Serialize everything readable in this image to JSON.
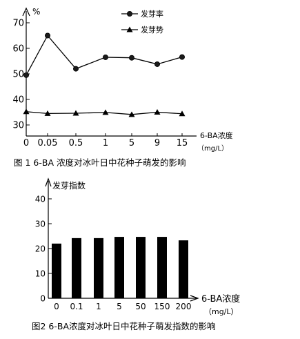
{
  "chart_data": [
    {
      "type": "line",
      "title": "图 1 6-BA 浓度对冰叶日中花种子萌发的影响",
      "ylabel": "%",
      "xlabel": "6-BA浓度",
      "xunit": "（mg/L）",
      "categories": [
        "0",
        "0.05",
        "0.5",
        "1",
        "5",
        "9",
        "15"
      ],
      "yticks": [
        "30",
        "40",
        "50",
        "60",
        "70"
      ],
      "ylim": [
        28,
        73
      ],
      "legend_position": "top-right",
      "series": [
        {
          "name": "发芽率",
          "marker": "circle",
          "values": [
            49.5,
            65,
            52,
            56.5,
            56.3,
            53.8,
            56.6
          ]
        },
        {
          "name": "发芽势",
          "marker": "triangle",
          "values": [
            35.2,
            34.5,
            34.6,
            34.9,
            34.1,
            35.0,
            34.4
          ]
        }
      ]
    },
    {
      "type": "bar",
      "title": "图2 6-BA浓度对冰叶日中花种子萌发指数的影响",
      "ylabel": "发芽指数",
      "xlabel": "6-BA浓度",
      "xunit": "（mg/L）",
      "categories": [
        "0",
        "0.1",
        "1",
        "5",
        "50",
        "150",
        "200"
      ],
      "values": [
        22.0,
        24.2,
        24.2,
        24.7,
        24.7,
        24.7,
        23.3
      ],
      "yticks": [
        "0",
        "10",
        "20",
        "30",
        "40"
      ],
      "ylim": [
        0,
        44
      ],
      "colors": {
        "bar": "#000000"
      }
    }
  ]
}
